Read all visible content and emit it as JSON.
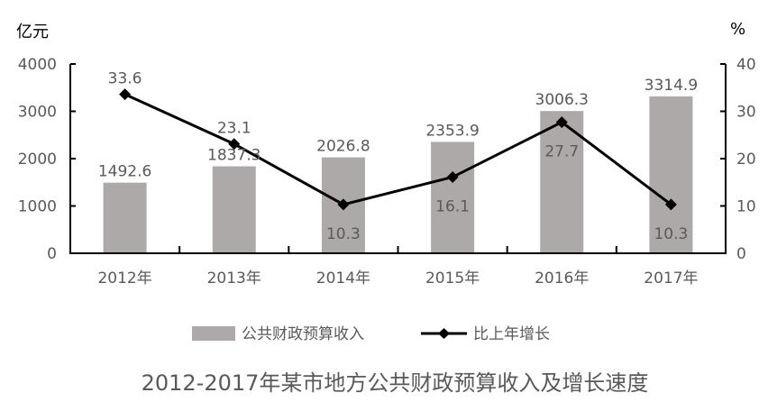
{
  "chart_data": {
    "type": "bar+line",
    "title": "2012-2017年某市地方公共财政预算收入及增长速度",
    "categories": [
      "2012年",
      "2013年",
      "2014年",
      "2015年",
      "2016年",
      "2017年"
    ],
    "series": [
      {
        "name": "公共财政预算收入",
        "type": "bar",
        "axis": "left",
        "color": "#ADA9A8",
        "values": [
          1492.6,
          1837.3,
          2026.8,
          2353.9,
          3006.3,
          3314.9
        ],
        "labels": [
          "1492.6",
          "1837.3",
          "2026.8",
          "2353.9",
          "3006.3",
          "3314.9"
        ]
      },
      {
        "name": "比上年增长",
        "type": "line",
        "axis": "right",
        "color": "#000000",
        "marker": "diamond",
        "values": [
          33.6,
          23.1,
          10.3,
          16.1,
          27.7,
          10.3
        ],
        "labels": [
          "33.6",
          "23.1",
          "10.3",
          "16.1",
          "27.7",
          "10.3"
        ],
        "label_positions": [
          "above",
          "above",
          "below",
          "below",
          "below",
          "below"
        ]
      }
    ],
    "left_axis": {
      "unit": "亿元",
      "ylim": [
        0,
        4000
      ],
      "ticks": [
        "0",
        "1000",
        "2000",
        "3000",
        "4000"
      ]
    },
    "right_axis": {
      "unit": "%",
      "ylim": [
        0,
        40
      ],
      "ticks": [
        "0",
        "10",
        "20",
        "30",
        "40"
      ]
    },
    "xlabel": "",
    "grid": false,
    "legend_position": "bottom"
  }
}
